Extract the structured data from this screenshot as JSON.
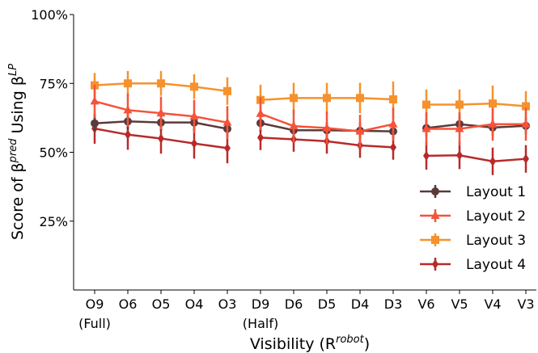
{
  "chart_data": {
    "type": "line",
    "xlabel": "Visibility (R",
    "xlabel_sup": "robot",
    "xlabel_close": ")",
    "ylabel": "Score of β",
    "ylabel_sup1": "pred",
    "ylabel_mid": " Using β",
    "ylabel_sup2": "LP",
    "ylim": [
      0,
      100
    ],
    "yticks": [
      "25%",
      "50%",
      "75%",
      "100%"
    ],
    "ytick_values": [
      25,
      50,
      75,
      100
    ],
    "legend_position": "bottom-right",
    "groups": [
      {
        "categories": [
          "O9",
          "O6",
          "O5",
          "O4",
          "O3"
        ],
        "sublabel": "(Full)"
      },
      {
        "categories": [
          "D9",
          "D6",
          "D5",
          "D4",
          "D3"
        ],
        "sublabel": "(Half)"
      },
      {
        "categories": [
          "V6",
          "V5",
          "V4",
          "V3"
        ],
        "sublabel": ""
      }
    ],
    "series": [
      {
        "name": "Layout 1",
        "color": "#5b3a3a",
        "marker": "circle",
        "values": [
          [
            60.5,
            61.2,
            60.8,
            60.8,
            58.5
          ],
          [
            60.6,
            58.0,
            58.0,
            57.8,
            57.6
          ],
          [
            58.8,
            60.2,
            59.0,
            59.6
          ]
        ],
        "errors": [
          [
            3.0,
            3.0,
            3.0,
            3.0,
            3.0
          ],
          [
            3.0,
            3.0,
            3.0,
            3.0,
            3.0
          ],
          [
            3.0,
            3.0,
            3.0,
            3.0
          ]
        ]
      },
      {
        "name": "Layout 2",
        "color": "#f5533a",
        "marker": "triangle",
        "values": [
          [
            68.5,
            65.3,
            64.2,
            63.0,
            60.8
          ],
          [
            64.0,
            59.5,
            58.8,
            57.6,
            60.2
          ],
          [
            58.5,
            58.5,
            60.2,
            60.2
          ]
        ],
        "errors": [
          [
            6.0,
            6.0,
            6.0,
            6.0,
            6.0
          ],
          [
            6.0,
            6.0,
            6.0,
            6.0,
            6.0
          ],
          [
            6.0,
            6.0,
            6.0,
            6.0
          ]
        ]
      },
      {
        "name": "Layout 3",
        "color": "#f5922e",
        "marker": "square",
        "values": [
          [
            74.3,
            75.0,
            75.0,
            73.8,
            72.2
          ],
          [
            69.0,
            69.7,
            69.7,
            69.7,
            69.2
          ],
          [
            67.3,
            67.3,
            67.7,
            66.7
          ]
        ],
        "errors": [
          [
            4.5,
            4.5,
            4.5,
            4.5,
            5.0
          ],
          [
            5.5,
            5.5,
            5.5,
            5.5,
            6.5
          ],
          [
            5.5,
            5.5,
            6.5,
            5.5
          ]
        ]
      },
      {
        "name": "Layout 4",
        "color": "#b82a2a",
        "marker": "diamond",
        "values": [
          [
            58.6,
            56.4,
            55.0,
            53.2,
            51.5
          ],
          [
            55.3,
            54.7,
            54.0,
            52.5,
            51.8
          ],
          [
            48.7,
            48.9,
            46.7,
            47.6
          ]
        ],
        "errors": [
          [
            5.5,
            5.5,
            5.5,
            5.5,
            5.5
          ],
          [
            4.5,
            4.5,
            4.5,
            4.5,
            4.5
          ],
          [
            5.0,
            5.0,
            5.0,
            5.0
          ]
        ]
      }
    ]
  }
}
